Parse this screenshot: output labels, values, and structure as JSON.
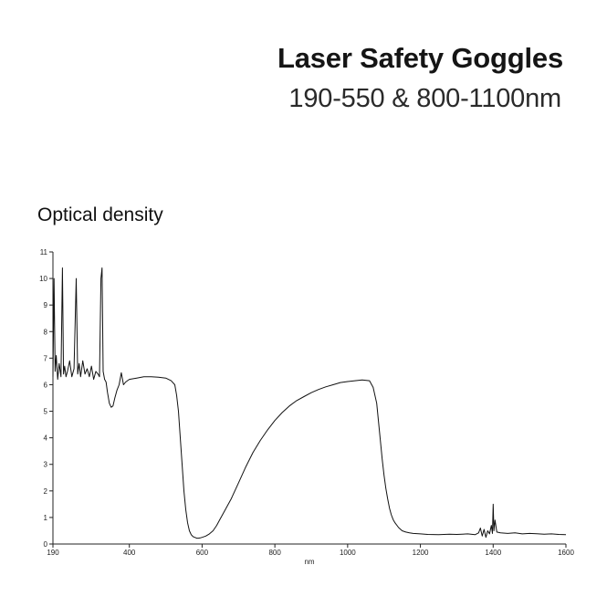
{
  "header": {
    "title": "Laser Safety Goggles",
    "subtitle": "190-550 & 800-1100nm"
  },
  "chart_data": {
    "type": "line",
    "ylabel": "Optical density",
    "xlabel": "nm",
    "xlim": [
      190,
      1600
    ],
    "ylim": [
      0,
      11
    ],
    "xticks": [
      190,
      400,
      600,
      800,
      1000,
      1200,
      1400,
      1600
    ],
    "yticks": [
      0,
      1,
      2,
      3,
      4,
      5,
      6,
      7,
      8,
      9,
      10,
      11
    ],
    "grid": false,
    "series": [
      {
        "x": [
          190,
          193,
          196,
          199,
          203,
          207,
          212,
          216,
          219,
          222,
          226,
          230,
          236,
          242,
          248,
          254,
          258,
          262,
          266,
          272,
          278,
          284,
          290,
          296,
          302,
          308,
          314,
          318,
          322,
          325,
          328,
          332,
          336,
          340,
          345,
          350,
          355,
          360,
          366,
          372,
          378,
          384,
          390,
          400,
          420,
          440,
          460,
          480,
          500,
          515,
          525,
          530,
          535,
          540,
          545,
          550,
          555,
          560,
          565,
          570,
          575,
          580,
          585,
          590,
          595,
          600,
          610,
          620,
          630,
          640,
          650,
          660,
          680,
          700,
          720,
          740,
          760,
          780,
          800,
          820,
          840,
          860,
          880,
          900,
          920,
          940,
          960,
          980,
          1000,
          1020,
          1040,
          1060,
          1070,
          1080,
          1085,
          1090,
          1095,
          1100,
          1105,
          1110,
          1115,
          1120,
          1125,
          1130,
          1140,
          1150,
          1160,
          1170,
          1180,
          1200,
          1220,
          1250,
          1280,
          1300,
          1330,
          1350,
          1360,
          1365,
          1370,
          1375,
          1380,
          1385,
          1390,
          1395,
          1398,
          1400,
          1402,
          1405,
          1410,
          1420,
          1440,
          1460,
          1480,
          1500,
          1520,
          1540,
          1560,
          1580,
          1600
        ],
        "y": [
          6.3,
          10.0,
          6.5,
          7.1,
          6.2,
          6.8,
          6.3,
          10.4,
          6.4,
          6.7,
          6.3,
          6.5,
          6.9,
          6.3,
          6.6,
          10.0,
          6.4,
          6.8,
          6.3,
          6.9,
          6.4,
          6.6,
          6.3,
          6.7,
          6.2,
          6.5,
          6.4,
          6.3,
          10.0,
          10.4,
          6.5,
          6.2,
          6.1,
          5.7,
          5.3,
          5.15,
          5.2,
          5.5,
          5.8,
          6.0,
          6.45,
          6.0,
          6.1,
          6.2,
          6.25,
          6.3,
          6.3,
          6.28,
          6.25,
          6.15,
          6.0,
          5.6,
          5.0,
          4.0,
          3.0,
          2.0,
          1.3,
          0.8,
          0.5,
          0.35,
          0.28,
          0.25,
          0.22,
          0.22,
          0.23,
          0.25,
          0.3,
          0.38,
          0.5,
          0.7,
          0.95,
          1.2,
          1.7,
          2.3,
          2.9,
          3.45,
          3.9,
          4.3,
          4.65,
          4.95,
          5.2,
          5.4,
          5.55,
          5.7,
          5.82,
          5.92,
          6.0,
          6.08,
          6.12,
          6.15,
          6.18,
          6.15,
          5.9,
          5.3,
          4.6,
          3.9,
          3.2,
          2.6,
          2.1,
          1.7,
          1.35,
          1.1,
          0.92,
          0.8,
          0.62,
          0.5,
          0.45,
          0.42,
          0.4,
          0.38,
          0.36,
          0.35,
          0.37,
          0.36,
          0.38,
          0.35,
          0.42,
          0.6,
          0.3,
          0.55,
          0.25,
          0.5,
          0.38,
          0.7,
          0.4,
          1.5,
          0.5,
          0.9,
          0.45,
          0.42,
          0.4,
          0.42,
          0.38,
          0.4,
          0.39,
          0.37,
          0.38,
          0.36,
          0.35
        ]
      }
    ]
  }
}
